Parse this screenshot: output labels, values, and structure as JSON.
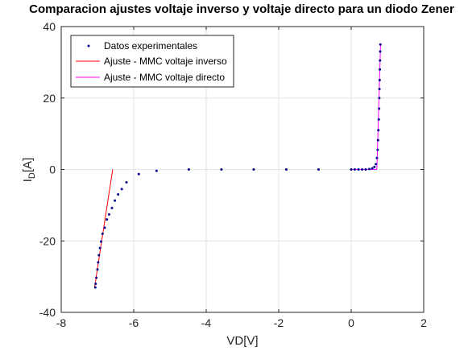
{
  "chart_data": {
    "type": "scatter",
    "title": "Comparacion ajustes voltaje inverso y voltaje directo para un diodo Zener",
    "xlabel": "VD[V]",
    "ylabel_main": "I",
    "ylabel_sub": "D",
    "ylabel_unit": "[A]",
    "xlim": [
      -8,
      2
    ],
    "ylim": [
      -40,
      40
    ],
    "xticks": [
      -8,
      -6,
      -4,
      -2,
      0,
      2
    ],
    "xtick_labels": [
      "-8",
      "-6",
      "-4",
      "-2",
      "0",
      "2"
    ],
    "yticks": [
      -40,
      -20,
      0,
      20,
      40
    ],
    "ytick_labels": [
      "-40",
      "-20",
      "0",
      "20",
      "40"
    ],
    "grid": true,
    "legend_position": "top-left",
    "series": [
      {
        "name": "Datos experimentales",
        "kind": "scatter",
        "color": "#00008b",
        "points": [
          [
            -7.06,
            -33.0
          ],
          [
            -7.05,
            -32.0
          ],
          [
            -7.03,
            -30.3
          ],
          [
            -7.0,
            -28.0
          ],
          [
            -6.98,
            -26.0
          ],
          [
            -6.96,
            -24.0
          ],
          [
            -6.93,
            -22.0
          ],
          [
            -6.9,
            -20.2
          ],
          [
            -6.86,
            -18.0
          ],
          [
            -6.8,
            -16.3
          ],
          [
            -6.74,
            -14.0
          ],
          [
            -6.68,
            -12.6
          ],
          [
            -6.6,
            -10.8
          ],
          [
            -6.52,
            -8.7
          ],
          [
            -6.43,
            -7.0
          ],
          [
            -6.33,
            -5.5
          ],
          [
            -6.2,
            -3.6
          ],
          [
            -5.86,
            -1.3
          ],
          [
            -5.37,
            -0.4
          ],
          [
            -4.48,
            0.0
          ],
          [
            -3.58,
            0.0
          ],
          [
            -2.69,
            0.0
          ],
          [
            -1.79,
            0.0
          ],
          [
            -0.9,
            0.0
          ],
          [
            0.0,
            0.0
          ],
          [
            0.1,
            0.0
          ],
          [
            0.2,
            0.0
          ],
          [
            0.3,
            0.0
          ],
          [
            0.4,
            0.0
          ],
          [
            0.5,
            0.1
          ],
          [
            0.58,
            0.3
          ],
          [
            0.64,
            0.7
          ],
          [
            0.68,
            1.5
          ],
          [
            0.71,
            3.2
          ],
          [
            0.73,
            5.5
          ],
          [
            0.74,
            8.2
          ],
          [
            0.75,
            11.0
          ],
          [
            0.76,
            14.0
          ],
          [
            0.77,
            17.0
          ],
          [
            0.775,
            20.0
          ],
          [
            0.78,
            22.5
          ],
          [
            0.785,
            25.0
          ],
          [
            0.79,
            28.0
          ],
          [
            0.795,
            30.5
          ],
          [
            0.8,
            33.0
          ],
          [
            0.805,
            35.0
          ]
        ]
      },
      {
        "name": "Ajuste - MMC voltaje inverso",
        "kind": "line",
        "color": "#ff0000",
        "points": [
          [
            -7.08,
            -33.0
          ],
          [
            -6.58,
            0.0
          ]
        ]
      },
      {
        "name": "Ajuste - MMC voltaje directo",
        "kind": "line",
        "color": "#ff00ff",
        "points": [
          [
            0.0,
            0.0
          ],
          [
            0.7,
            0.0
          ],
          [
            0.71,
            0.5
          ],
          [
            0.81,
            35.0
          ]
        ]
      }
    ]
  }
}
